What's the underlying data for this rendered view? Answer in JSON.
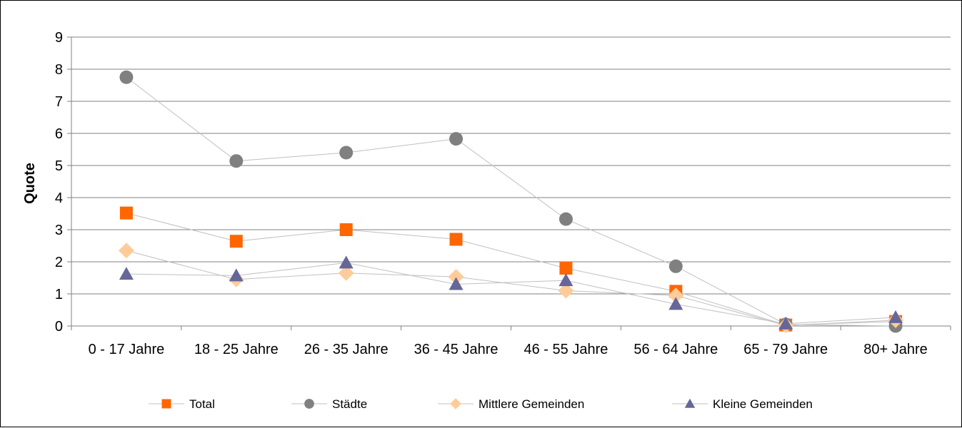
{
  "chart_data": {
    "type": "line",
    "title": "",
    "xlabel": "",
    "ylabel": "Quote",
    "ylim": [
      0,
      9
    ],
    "yticks": [
      0,
      1,
      2,
      3,
      4,
      5,
      6,
      7,
      8,
      9
    ],
    "grid": true,
    "legend_position": "bottom",
    "categories": [
      "0 - 17 Jahre",
      "18 - 25 Jahre",
      "26 - 35 Jahre",
      "36 - 45 Jahre",
      "46 - 55 Jahre",
      "56 - 64 Jahre",
      "65 - 79 Jahre",
      "80+ Jahre"
    ],
    "series": [
      {
        "name": "Total",
        "marker": "square",
        "color": "#FF6600",
        "values": [
          3.52,
          2.64,
          3.0,
          2.7,
          1.8,
          1.08,
          0.03,
          0.14
        ]
      },
      {
        "name": "Städte",
        "marker": "circle",
        "color": "#808080",
        "values": [
          7.75,
          5.14,
          5.4,
          5.83,
          3.33,
          1.86,
          0.05,
          0.0
        ]
      },
      {
        "name": "Mittlere Gemeinden",
        "marker": "diamond",
        "color": "#FFCC99",
        "values": [
          2.35,
          1.45,
          1.65,
          1.53,
          1.1,
          0.95,
          0.02,
          0.18
        ]
      },
      {
        "name": "Kleine Gemeinden",
        "marker": "triangle",
        "color": "#666699",
        "values": [
          1.62,
          1.57,
          1.97,
          1.3,
          1.42,
          0.68,
          0.07,
          0.27
        ]
      }
    ]
  }
}
